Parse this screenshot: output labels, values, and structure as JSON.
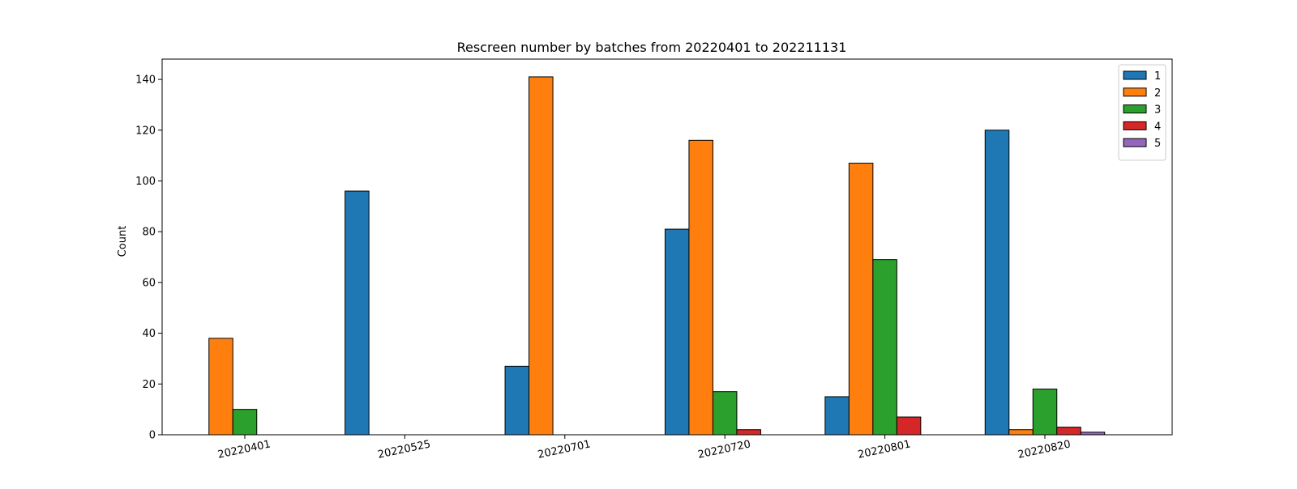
{
  "chart_data": {
    "type": "bar",
    "title": "Rescreen number  by batches from 20220401 to 202211131",
    "xlabel": "",
    "ylabel": "Count",
    "categories": [
      "20220401",
      "20220525",
      "20220701",
      "20220720",
      "20220801",
      "20220820"
    ],
    "ylim": [
      0,
      148
    ],
    "yticks": [
      0,
      20,
      40,
      60,
      80,
      100,
      120,
      140
    ],
    "grid": false,
    "legend_position": "top-right",
    "tick_label_rotation": "slanted",
    "series": [
      {
        "name": "1",
        "color": "#1f77b4",
        "values": [
          0,
          96,
          27,
          81,
          15,
          120
        ]
      },
      {
        "name": "2",
        "color": "#ff7f0e",
        "values": [
          38,
          0,
          141,
          116,
          107,
          2
        ]
      },
      {
        "name": "3",
        "color": "#2ca02c",
        "values": [
          10,
          0,
          0,
          17,
          69,
          18
        ]
      },
      {
        "name": "4",
        "color": "#d62728",
        "values": [
          0,
          0,
          0,
          2,
          7,
          3
        ]
      },
      {
        "name": "5",
        "color": "#9467bd",
        "values": [
          0,
          0,
          0,
          0,
          0,
          1
        ]
      }
    ]
  }
}
